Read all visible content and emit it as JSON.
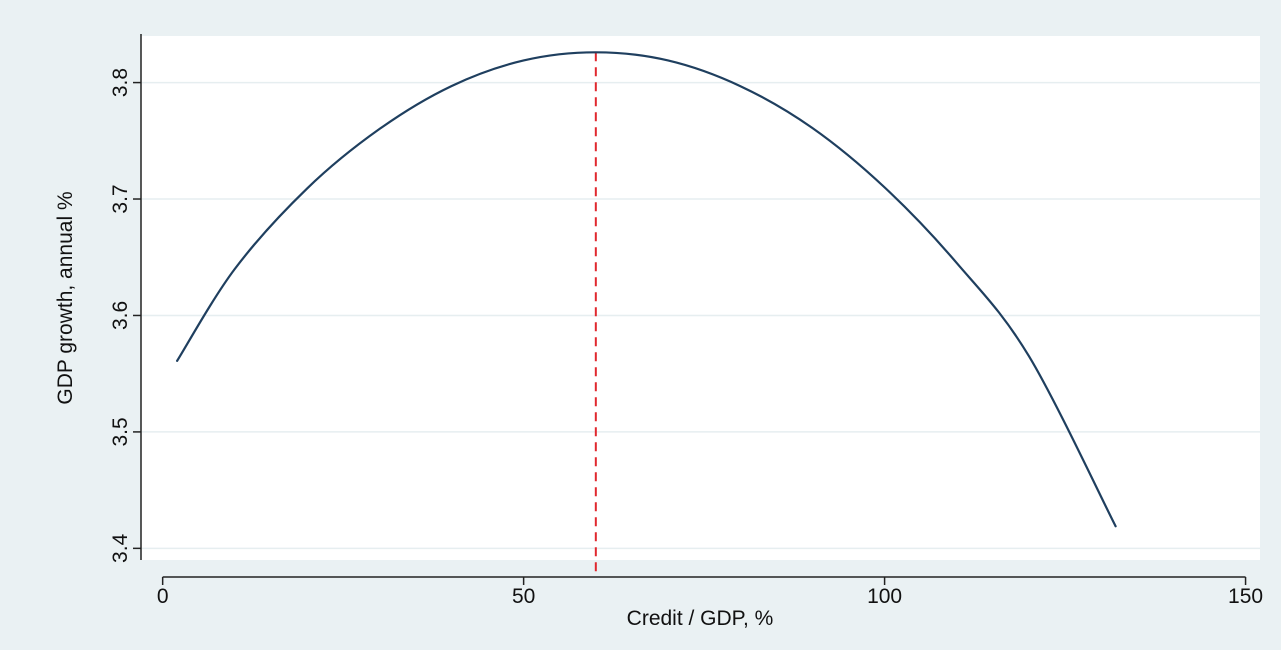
{
  "chart_data": {
    "type": "line",
    "title": "",
    "xlabel": "Credit / GDP, %",
    "ylabel": "GDP growth, annual %",
    "xlim": [
      -3,
      152
    ],
    "ylim": [
      3.39,
      3.84
    ],
    "x_ticks": [
      0,
      50,
      100,
      150
    ],
    "x_tick_labels": [
      "0",
      "50",
      "100",
      "150"
    ],
    "y_ticks": [
      3.4,
      3.5,
      3.6,
      3.7,
      3.8
    ],
    "y_tick_labels": [
      "3.4",
      "3.5",
      "3.6",
      "3.7",
      "3.8"
    ],
    "grid": "horizontal",
    "legend": "none",
    "series": [
      {
        "x": [
          2,
          10,
          20,
          30,
          40,
          50,
          60,
          70,
          80,
          90,
          100,
          110,
          120,
          132
        ],
        "y": [
          3.561,
          3.64,
          3.709,
          3.76,
          3.797,
          3.819,
          3.826,
          3.819,
          3.797,
          3.761,
          3.71,
          3.645,
          3.565,
          3.419
        ],
        "color": "#1f3f5f"
      }
    ],
    "reference_lines": [
      {
        "orientation": "vertical",
        "x": 60,
        "style": "dashed",
        "color": "#e0282e"
      }
    ],
    "colors": {
      "outer_background": "#eaf1f3",
      "plot_background": "#ffffff",
      "grid": "#e6eef0",
      "axis": "#222222"
    }
  }
}
